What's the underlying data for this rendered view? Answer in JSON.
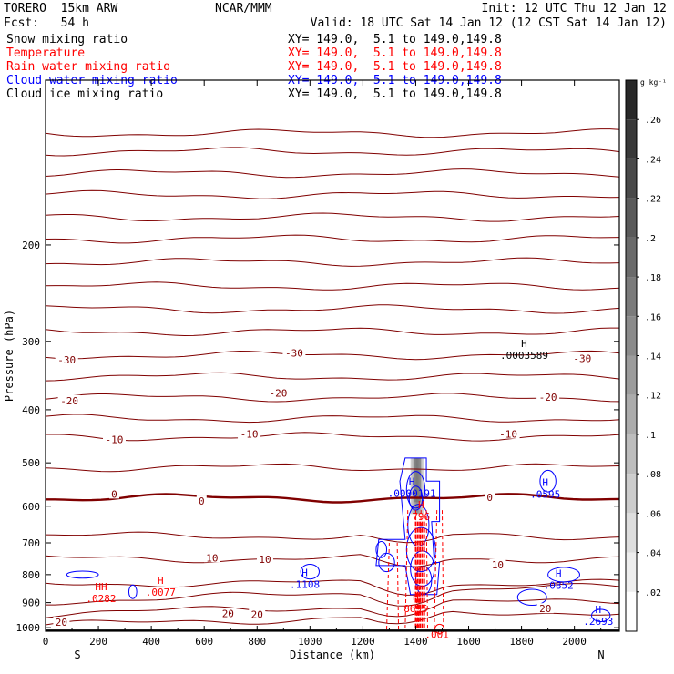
{
  "header": {
    "model": "TORERO  15km ARW",
    "center": "NCAR/MMM",
    "init": "Init: 12 UTC Thu 12 Jan 12",
    "fcst": "Fcst:   54 h",
    "valid": "Valid: 18 UTC Sat 14 Jan 12 (12 CST Sat 14 Jan 12)"
  },
  "fields": [
    {
      "name": "Snow mixing ratio",
      "xy": "XY= 149.0,  5.1 to 149.0,149.8",
      "color": "#000000"
    },
    {
      "name": "Temperature",
      "xy": "XY= 149.0,  5.1 to 149.0,149.8",
      "color": "#ff0000"
    },
    {
      "name": "Rain water mixing ratio",
      "xy": "XY= 149.0,  5.1 to 149.0,149.8",
      "color": "#ff0000"
    },
    {
      "name": "Cloud water mixing ratio",
      "xy": "XY= 149.0,  5.1 to 149.0,149.8",
      "color": "#0000ff"
    },
    {
      "name": "Cloud ice mixing ratio",
      "xy": "XY= 149.0,  5.1 to 149.0,149.8",
      "color": "#000000"
    }
  ],
  "colors": {
    "temperature": "#800000",
    "zero_isotherm": "#800000",
    "cloud_water": "#0000ff",
    "rain": "#ff0000",
    "text": "#000000"
  },
  "chart_data": {
    "type": "contour",
    "xlabel": "Distance (km)",
    "ylabel": "Pressure (hPa)",
    "x_ticks": [
      0,
      200,
      400,
      600,
      800,
      1000,
      1200,
      1400,
      1600,
      1800,
      2000
    ],
    "y_ticks": [
      200,
      300,
      400,
      500,
      600,
      700,
      800,
      900,
      1000
    ],
    "x_range": [
      0,
      2170
    ],
    "y_range": [
      100,
      1015
    ],
    "y_scale": "log",
    "x_end_labels": {
      "left": "S",
      "right": "N"
    },
    "colorbar": {
      "unit": "g kg⁻¹",
      "ticks": [
        0.02,
        0.04,
        0.06,
        0.08,
        0.1,
        0.12,
        0.14,
        0.16,
        0.18,
        0.2,
        0.22,
        0.24,
        0.26
      ],
      "tick_labels": [
        ".02",
        ".04",
        ".06",
        ".08",
        ".1",
        ".12",
        ".14",
        ".16",
        ".18",
        ".2",
        ".22",
        ".24",
        ".26"
      ],
      "range": [
        0,
        0.28
      ]
    },
    "isotherm_labels": [
      {
        "text": "-30",
        "x": 80,
        "p": 324
      },
      {
        "text": "-30",
        "x": 940,
        "p": 315
      },
      {
        "text": "-30",
        "x": 2030,
        "p": 322
      },
      {
        "text": "-20",
        "x": 90,
        "p": 385
      },
      {
        "text": "-20",
        "x": 880,
        "p": 373
      },
      {
        "text": "-20",
        "x": 1900,
        "p": 379
      },
      {
        "text": "-10",
        "x": 260,
        "p": 453
      },
      {
        "text": "-10",
        "x": 770,
        "p": 443
      },
      {
        "text": "-10",
        "x": 1750,
        "p": 443
      },
      {
        "text": "0",
        "x": 260,
        "p": 570
      },
      {
        "text": "0",
        "x": 590,
        "p": 587
      },
      {
        "text": "0",
        "x": 1680,
        "p": 578
      },
      {
        "text": "10",
        "x": 630,
        "p": 745
      },
      {
        "text": "10",
        "x": 830,
        "p": 750
      },
      {
        "text": "10",
        "x": 1710,
        "p": 767
      },
      {
        "text": "20",
        "x": 60,
        "p": 977
      },
      {
        "text": "20",
        "x": 690,
        "p": 942
      },
      {
        "text": "20",
        "x": 800,
        "p": 945
      },
      {
        "text": "20",
        "x": 1890,
        "p": 923
      }
    ],
    "extrema_labels": [
      {
        "mark": "H",
        "value": ".0003589",
        "x": 1810,
        "p": 312
      },
      {
        "mark": "H",
        "value": ".0000191",
        "x": 1385,
        "p": 557
      },
      {
        "mark": "H",
        "value": ".0595",
        "x": 1890,
        "p": 560
      },
      {
        "mark": "H",
        "value": "796",
        "x": 1420,
        "p": 614
      },
      {
        "mark": "H",
        "value": ".1108",
        "x": 980,
        "p": 818
      },
      {
        "mark": "H",
        "value": ".0077",
        "x": 435,
        "p": 845
      },
      {
        "mark": "HH",
        "value": ".0282",
        "x": 210,
        "p": 868
      },
      {
        "mark": "H",
        "value": ".0852",
        "x": 1940,
        "p": 820
      },
      {
        "mark": "H",
        "value": "8695",
        "x": 1400,
        "p": 905
      },
      {
        "mark": "H",
        "value": ".2693",
        "x": 2090,
        "p": 955
      },
      {
        "mark": "",
        "value": ".001",
        "x": 1480,
        "p": 1010
      }
    ],
    "isotherms": [
      {
        "value": -60,
        "p": 125
      },
      {
        "value": -58,
        "p": 135
      },
      {
        "value": -55,
        "p": 148
      },
      {
        "value": -52,
        "p": 162
      },
      {
        "value": -50,
        "p": 178
      },
      {
        "value": -48,
        "p": 195
      },
      {
        "value": -45,
        "p": 215
      },
      {
        "value": -42,
        "p": 238
      },
      {
        "value": -40,
        "p": 262
      },
      {
        "value": -35,
        "p": 288
      },
      {
        "value": -30,
        "p": 318
      },
      {
        "value": -25,
        "p": 348
      },
      {
        "value": -20,
        "p": 380
      },
      {
        "value": -15,
        "p": 415
      },
      {
        "value": -10,
        "p": 448
      },
      {
        "value": -5,
        "p": 510
      },
      {
        "value": 0,
        "p": 580
      },
      {
        "value": 5,
        "p": 680
      },
      {
        "value": 10,
        "p": 748
      },
      {
        "value": 15,
        "p": 830
      },
      {
        "value": 18,
        "p": 895
      },
      {
        "value": 20,
        "p": 945
      },
      {
        "value": 25,
        "p": 990
      }
    ]
  }
}
